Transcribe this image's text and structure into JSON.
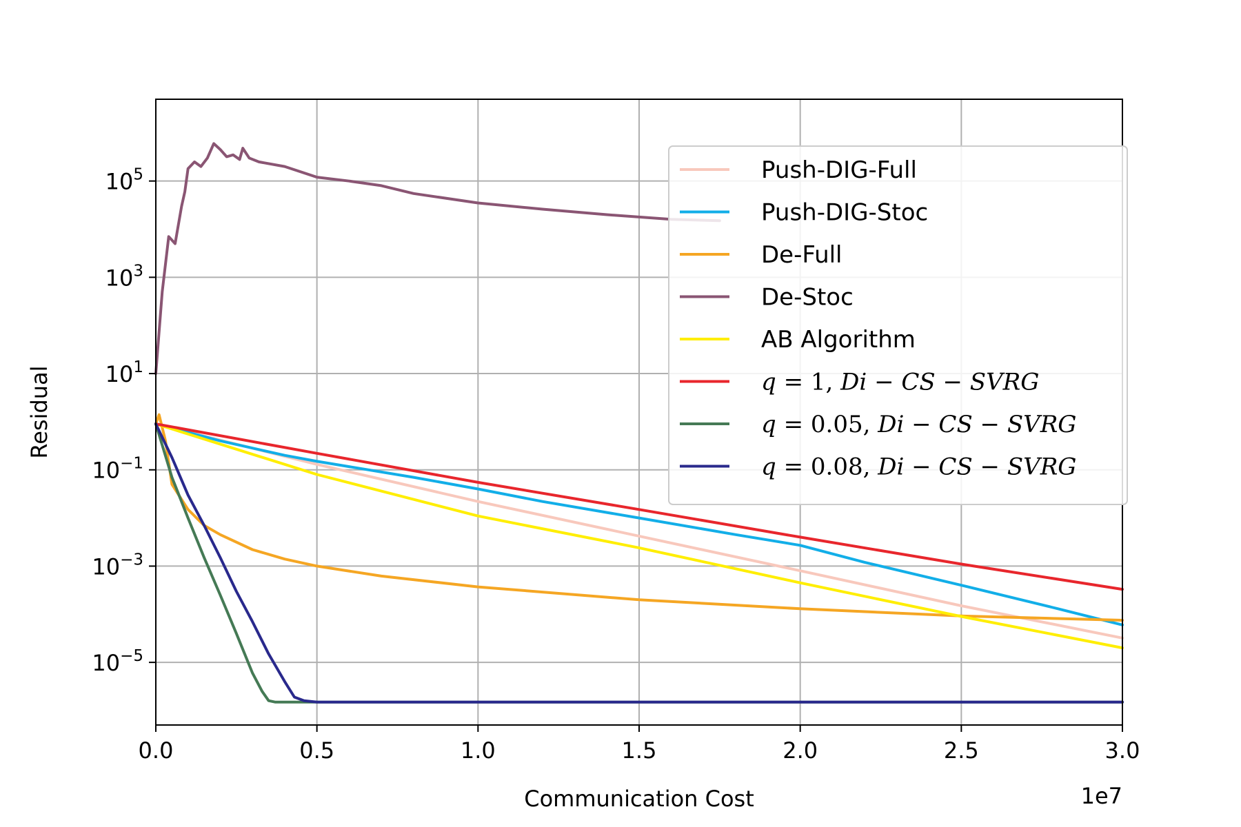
{
  "chart_data": {
    "type": "line",
    "title": "",
    "xlabel": "Communication Cost",
    "ylabel": "Residual",
    "x_offset_label": "1e7",
    "xscale": "linear",
    "yscale": "log",
    "xlim": [
      0,
      30000000
    ],
    "ylim": [
      5e-07,
      5000000.0
    ],
    "grid": true,
    "legend_position": "upper-right",
    "x_ticks": [
      {
        "value": 0,
        "label": "0.0"
      },
      {
        "value": 5000000,
        "label": "0.5"
      },
      {
        "value": 10000000,
        "label": "1.0"
      },
      {
        "value": 15000000,
        "label": "1.5"
      },
      {
        "value": 20000000,
        "label": "2.0"
      },
      {
        "value": 25000000,
        "label": "2.5"
      },
      {
        "value": 30000000,
        "label": "3.0"
      }
    ],
    "y_ticks": [
      {
        "value": 100000,
        "base": "10",
        "exp": "5"
      },
      {
        "value": 1000,
        "base": "10",
        "exp": "3"
      },
      {
        "value": 10,
        "base": "10",
        "exp": "1"
      },
      {
        "value": 0.1,
        "base": "10",
        "exp": "−1"
      },
      {
        "value": 0.001,
        "base": "10",
        "exp": "−3"
      },
      {
        "value": 1e-05,
        "base": "10",
        "exp": "−5"
      }
    ],
    "series": [
      {
        "name": "Push-DIG-Full",
        "label_plain": "Push-DIG-Full",
        "color": "#f8c8bc",
        "x": [
          0,
          5000000,
          10000000,
          15000000,
          20000000,
          25000000,
          30000000
        ],
        "y": [
          0.9,
          0.13,
          0.022,
          0.0042,
          0.0008,
          0.00015,
          3.2e-05
        ]
      },
      {
        "name": "Push-DIG-Stoc",
        "label_plain": "Push-DIG-Stoc",
        "color": "#12aee8",
        "x": [
          0,
          2000000,
          4000000,
          5000000,
          8000000,
          10000000,
          12000000,
          15000000,
          18000000,
          20000000,
          22000000,
          25000000,
          28000000,
          30000000
        ],
        "y": [
          0.9,
          0.4,
          0.2,
          0.15,
          0.07,
          0.04,
          0.022,
          0.01,
          0.0045,
          0.0027,
          0.0012,
          0.0004,
          0.00013,
          6e-05
        ]
      },
      {
        "name": "De-Full",
        "label_plain": "De-Full",
        "color": "#f5a623",
        "x": [
          0,
          100000,
          300000,
          500000,
          1000000,
          1500000,
          2000000,
          3000000,
          4000000,
          5000000,
          7000000,
          10000000,
          15000000,
          20000000,
          25000000,
          30000000
        ],
        "y": [
          0.9,
          1.4,
          0.4,
          0.05,
          0.015,
          0.007,
          0.0045,
          0.0022,
          0.0014,
          0.001,
          0.00062,
          0.00037,
          0.0002,
          0.00013,
          9.2e-05,
          7.5e-05
        ]
      },
      {
        "name": "De-Stoc",
        "label_plain": "De-Stoc",
        "color": "#8a5573",
        "x": [
          0,
          200000,
          400000,
          600000,
          800000,
          900000,
          1000000,
          1200000,
          1400000,
          1600000,
          1800000,
          2000000,
          2200000,
          2400000,
          2600000,
          2700000,
          2900000,
          3200000,
          4000000,
          5000000,
          6000000,
          7000000,
          8000000,
          10000000,
          12000000,
          14000000,
          16000000,
          17500000
        ],
        "y": [
          10,
          500,
          7000,
          5000,
          30000,
          60000,
          180000,
          250000,
          200000,
          300000,
          600000,
          450000,
          320000,
          350000,
          280000,
          480000,
          300000,
          250000,
          200000,
          120000,
          100000,
          80000,
          55000,
          35000,
          26000,
          20000,
          16000,
          15000
        ]
      },
      {
        "name": "AB Algorithm",
        "label_plain": "AB Algorithm",
        "color": "#ffee00",
        "x": [
          0,
          5000000,
          10000000,
          15000000,
          20000000,
          25000000,
          30000000
        ],
        "y": [
          0.9,
          0.08,
          0.011,
          0.0024,
          0.00045,
          9e-05,
          2e-05
        ]
      },
      {
        "name": "q = 1, Di − CS − SVRG",
        "label_plain": "q=1,Di−CS−SVRG",
        "label_lhs": "q",
        "label_eq": " = ",
        "label_val": "1,",
        "label_rhs": " Di − CS − SVRG",
        "color": "#e8262c",
        "x": [
          0,
          5000000,
          10000000,
          15000000,
          20000000,
          25000000,
          30000000
        ],
        "y": [
          0.9,
          0.22,
          0.055,
          0.015,
          0.004,
          0.0011,
          0.00033
        ]
      },
      {
        "name": "q = 0.05, Di − CS − SVRG",
        "label_plain": "q=0.05,Di−CS−SVRG",
        "label_lhs": "q",
        "label_eq": " = ",
        "label_val": "0.05,",
        "label_rhs": " Di − CS − SVRG",
        "color": "#457a55",
        "x": [
          0,
          500000,
          1000000,
          1500000,
          2000000,
          2500000,
          3000000,
          3300000,
          3500000,
          3700000,
          4000000,
          30000000
        ],
        "y": [
          0.9,
          0.07,
          0.01,
          0.0015,
          0.00025,
          4e-05,
          6e-06,
          2.5e-06,
          1.6e-06,
          1.5e-06,
          1.5e-06,
          1.5e-06
        ]
      },
      {
        "name": "q = 0.08, Di − CS − SVRG",
        "label_plain": "q=0.08,Di−CS−SVRG",
        "label_lhs": "q",
        "label_eq": " = ",
        "label_val": "0.08,",
        "label_rhs": " Di − CS − SVRG",
        "color": "#29298c",
        "x": [
          0,
          500000,
          1000000,
          1500000,
          2000000,
          2500000,
          3000000,
          3500000,
          4000000,
          4300000,
          4600000,
          5000000,
          30000000
        ],
        "y": [
          0.9,
          0.18,
          0.03,
          0.007,
          0.0015,
          0.0003,
          7e-05,
          1.5e-05,
          4e-06,
          1.9e-06,
          1.6e-06,
          1.5e-06,
          1.5e-06
        ]
      }
    ]
  }
}
